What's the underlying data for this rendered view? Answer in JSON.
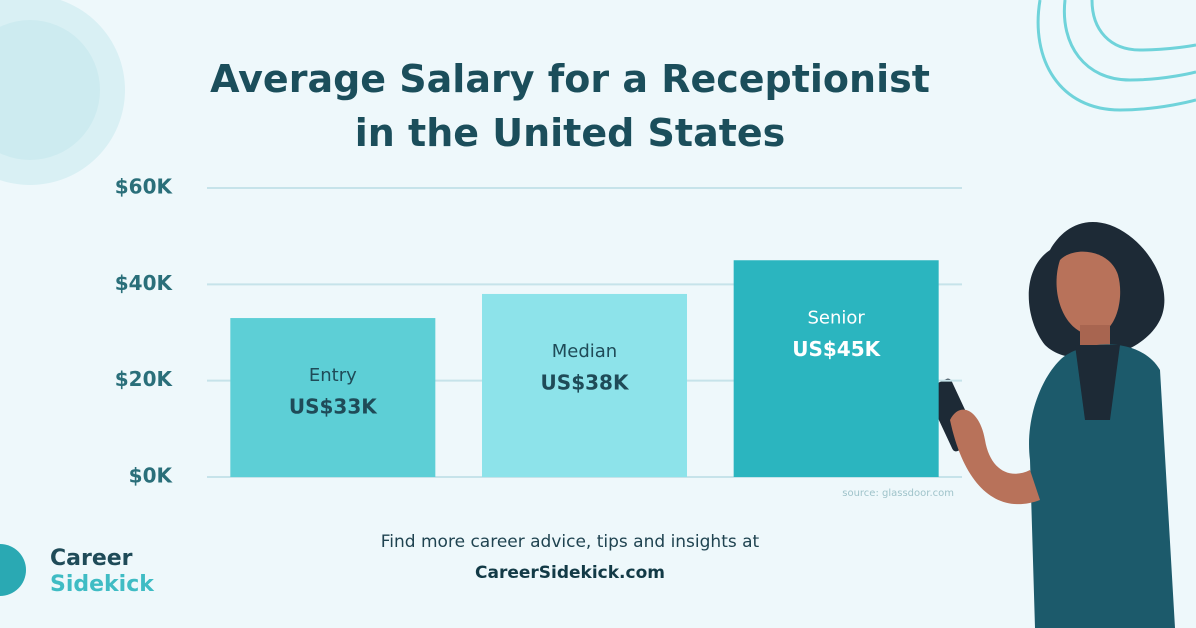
{
  "chart_data": {
    "type": "bar",
    "title": "Average Salary for a Receptionist in the United States",
    "categories": [
      "Entry",
      "Median",
      "Senior"
    ],
    "values": [
      33000,
      38000,
      45000
    ],
    "value_labels": [
      "US$33K",
      "US$38K",
      "US$45K"
    ],
    "colors": [
      "#5dcfd6",
      "#8de3ea",
      "#2bb5bf"
    ],
    "ylim": [
      0,
      60000
    ],
    "yticks": [
      {
        "value": 0,
        "label": "$0K"
      },
      {
        "value": 20000,
        "label": "$20K"
      },
      {
        "value": 40000,
        "label": "$40K"
      },
      {
        "value": 60000,
        "label": "$60K"
      }
    ],
    "grid": true,
    "source": "source: glassdoor.com"
  },
  "footer": {
    "text": "Find more career advice, tips and insights at",
    "link": "CareerSidekick.com"
  },
  "logo": {
    "line1": "Career",
    "line2": "Sidekick"
  }
}
